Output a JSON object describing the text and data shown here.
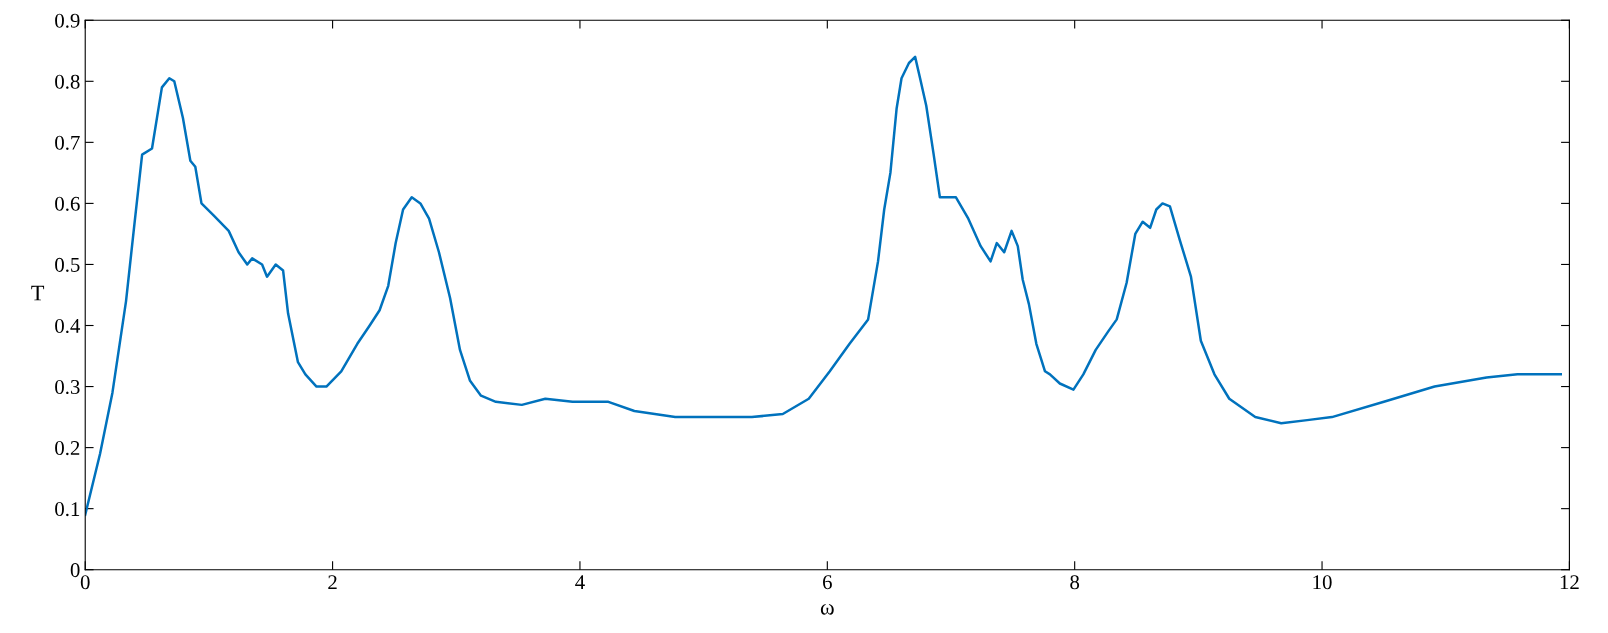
{
  "chart_data": {
    "type": "line",
    "xlabel": "ω",
    "ylabel": "T",
    "grid": false,
    "marker": "none",
    "line_style": "solid",
    "xlim": [
      0,
      12
    ],
    "xticks": [
      0,
      2,
      4,
      6,
      8,
      10,
      12
    ],
    "ylim": [
      0,
      0.9
    ],
    "yticks": [
      0,
      0.1,
      0.2,
      0.3,
      0.4,
      0.5,
      0.6,
      0.7,
      0.8,
      0.9
    ],
    "x": [
      0,
      0.12,
      0.22,
      0.33,
      0.4,
      0.46,
      0.54,
      0.62,
      0.68,
      0.72,
      0.79,
      0.85,
      0.89,
      0.94,
      1.04,
      1.16,
      1.24,
      1.31,
      1.35,
      1.43,
      1.47,
      1.54,
      1.6,
      1.64,
      1.72,
      1.78,
      1.87,
      1.95,
      2.07,
      2.2,
      2.3,
      2.38,
      2.45,
      2.51,
      2.57,
      2.64,
      2.71,
      2.78,
      2.86,
      2.95,
      3.03,
      3.11,
      3.2,
      3.32,
      3.53,
      3.72,
      3.94,
      4.23,
      4.44,
      4.77,
      5.1,
      5.39,
      5.64,
      5.85,
      6.02,
      6.18,
      6.33,
      6.41,
      6.46,
      6.51,
      6.56,
      6.6,
      6.66,
      6.71,
      6.75,
      6.8,
      6.86,
      6.91,
      6.97,
      7.04,
      7.14,
      7.24,
      7.32,
      7.37,
      7.43,
      7.49,
      7.54,
      7.58,
      7.63,
      7.69,
      7.76,
      7.8,
      7.88,
      7.99,
      8.07,
      8.17,
      8.27,
      8.34,
      8.42,
      8.49,
      8.55,
      8.61,
      8.66,
      8.71,
      8.77,
      8.85,
      8.94,
      9.02,
      9.13,
      9.25,
      9.46,
      9.67,
      9.88,
      10.08,
      10.5,
      10.91,
      11.33,
      11.58,
      11.93
    ],
    "series": [
      {
        "color": "#0072bd",
        "values": [
          0.09,
          0.19,
          0.29,
          0.44,
          0.57,
          0.68,
          0.69,
          0.79,
          0.805,
          0.8,
          0.74,
          0.67,
          0.66,
          0.6,
          0.58,
          0.555,
          0.52,
          0.5,
          0.51,
          0.5,
          0.48,
          0.5,
          0.49,
          0.42,
          0.34,
          0.32,
          0.3,
          0.3,
          0.325,
          0.37,
          0.4,
          0.425,
          0.465,
          0.535,
          0.59,
          0.61,
          0.6,
          0.575,
          0.52,
          0.445,
          0.36,
          0.31,
          0.285,
          0.275,
          0.27,
          0.28,
          0.275,
          0.275,
          0.26,
          0.25,
          0.25,
          0.25,
          0.255,
          0.28,
          0.325,
          0.37,
          0.41,
          0.505,
          0.59,
          0.65,
          0.755,
          0.805,
          0.83,
          0.84,
          0.805,
          0.76,
          0.68,
          0.61,
          0.61,
          0.61,
          0.575,
          0.53,
          0.505,
          0.535,
          0.52,
          0.555,
          0.53,
          0.475,
          0.435,
          0.37,
          0.325,
          0.32,
          0.305,
          0.295,
          0.32,
          0.36,
          0.39,
          0.41,
          0.47,
          0.55,
          0.57,
          0.56,
          0.59,
          0.6,
          0.595,
          0.54,
          0.48,
          0.375,
          0.32,
          0.28,
          0.25,
          0.24,
          0.245,
          0.25,
          0.275,
          0.3,
          0.315,
          0.32,
          0.32
        ]
      }
    ]
  }
}
